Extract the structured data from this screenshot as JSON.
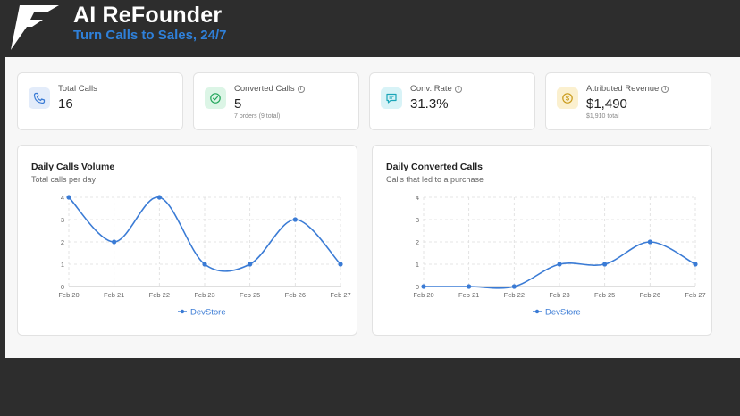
{
  "header": {
    "title": "AI ReFounder",
    "tagline": "Turn Calls to Sales, 24/7"
  },
  "stats": [
    {
      "label": "Total Calls",
      "value": "16",
      "sub": "",
      "icon": "phone-icon",
      "color": "#3a7bd5",
      "bg": "#e3ecfa",
      "info": false
    },
    {
      "label": "Converted Calls",
      "value": "5",
      "sub": "7 orders (9 total)",
      "icon": "check-circle-icon",
      "color": "#22a55a",
      "bg": "#dcf5e6",
      "info": true
    },
    {
      "label": "Conv. Rate",
      "value": "31.3%",
      "sub": "",
      "icon": "message-icon",
      "color": "#1aa5b8",
      "bg": "#d8f3f7",
      "info": true
    },
    {
      "label": "Attributed Revenue",
      "value": "$1,490",
      "sub": "$1,910 total",
      "icon": "dollar-icon",
      "color": "#c99a1a",
      "bg": "#fbf0cf",
      "info": true
    }
  ],
  "charts": {
    "calls": {
      "title": "Daily Calls Volume",
      "subtitle": "Total calls per day"
    },
    "converted": {
      "title": "Daily Converted Calls",
      "subtitle": "Calls that led to a purchase"
    }
  },
  "chart_data": [
    {
      "type": "line",
      "title": "Daily Calls Volume",
      "subtitle": "Total calls per day",
      "categories": [
        "Feb 20",
        "Feb 21",
        "Feb 22",
        "Feb 23",
        "Feb 25",
        "Feb 26",
        "Feb 27"
      ],
      "series": [
        {
          "name": "DevStore",
          "values": [
            4,
            2,
            4,
            1,
            1,
            3,
            1
          ]
        }
      ],
      "ylim": [
        0,
        4
      ],
      "yticks": [
        0,
        1,
        2,
        3,
        4
      ],
      "grid": true,
      "legend": "bottom",
      "color": "#3a7bd5"
    },
    {
      "type": "line",
      "title": "Daily Converted Calls",
      "subtitle": "Calls that led to a purchase",
      "categories": [
        "Feb 20",
        "Feb 21",
        "Feb 22",
        "Feb 23",
        "Feb 25",
        "Feb 26",
        "Feb 27"
      ],
      "series": [
        {
          "name": "DevStore",
          "values": [
            0,
            0,
            0,
            1,
            1,
            2,
            1
          ]
        }
      ],
      "ylim": [
        0,
        4
      ],
      "yticks": [
        0,
        1,
        2,
        3,
        4
      ],
      "grid": true,
      "legend": "bottom",
      "color": "#3a7bd5"
    }
  ]
}
